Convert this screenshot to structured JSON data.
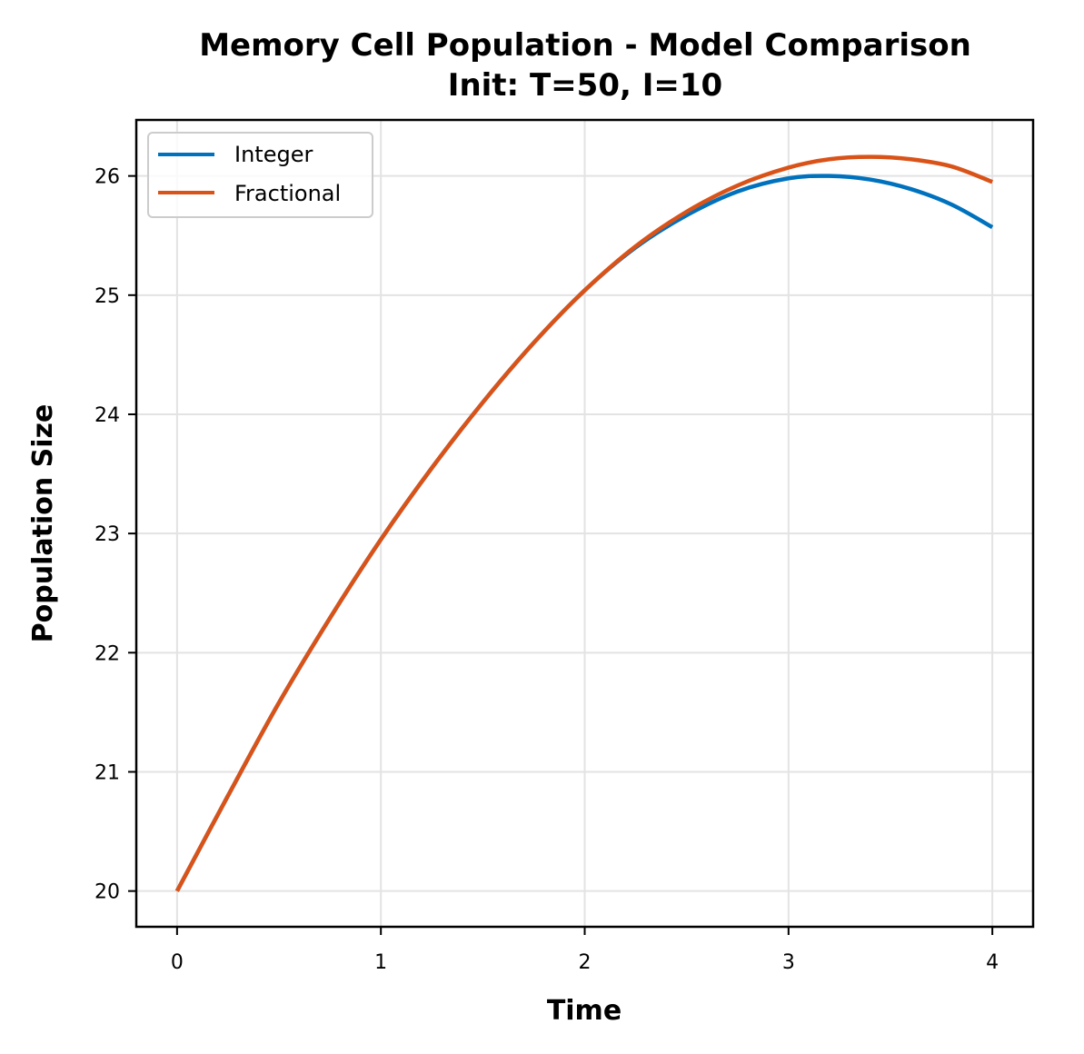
{
  "chart_data": {
    "type": "line",
    "title": "Memory Cell Population - Model Comparison",
    "subtitle": "Init: T=50, I=10",
    "xlabel": "Time",
    "ylabel": "Population Size",
    "xlim": [
      -0.2,
      4.2
    ],
    "ylim": [
      19.7,
      26.47
    ],
    "xticks": [
      0,
      1,
      2,
      3,
      4
    ],
    "yticks": [
      20,
      21,
      22,
      23,
      24,
      25,
      26
    ],
    "grid": true,
    "legend_position": "top-left",
    "x": [
      0,
      0.25,
      0.5,
      0.75,
      1.0,
      1.25,
      1.5,
      1.75,
      2.0,
      2.25,
      2.5,
      2.75,
      3.0,
      3.2,
      3.4,
      3.6,
      3.8,
      4.0
    ],
    "series": [
      {
        "name": "Integer",
        "color": "#0072BD",
        "values": [
          20.0,
          20.8,
          21.58,
          22.29,
          22.95,
          23.55,
          24.1,
          24.6,
          25.04,
          25.4,
          25.67,
          25.87,
          25.98,
          26.0,
          25.97,
          25.89,
          25.76,
          25.57
        ]
      },
      {
        "name": "Fractional",
        "color": "#D95319",
        "values": [
          20.0,
          20.8,
          21.58,
          22.29,
          22.95,
          23.55,
          24.1,
          24.6,
          25.04,
          25.41,
          25.7,
          25.92,
          26.07,
          26.14,
          26.16,
          26.14,
          26.08,
          25.95
        ]
      }
    ]
  }
}
